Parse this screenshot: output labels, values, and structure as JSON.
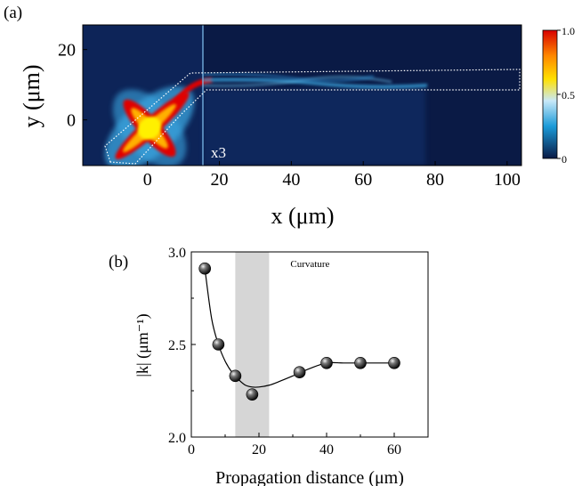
{
  "chart_data": [
    {
      "panel_label": "(a)",
      "type": "heatmap",
      "xlabel": "x (μm)",
      "ylabel": "y (μm)",
      "xlim": [
        -18,
        104
      ],
      "ylim": [
        -13,
        27
      ],
      "xticks": [
        "0",
        "20",
        "40",
        "60",
        "80",
        "100"
      ],
      "yticks": [
        "20",
        "0"
      ],
      "annotation": "x3",
      "annotation_x": 15,
      "colorbar": {
        "min": 0,
        "max": 1.0,
        "ticks": [
          "1.0",
          "0.5",
          "0"
        ],
        "colors": [
          "#0a1a45",
          "#1a9ad8",
          "#c8e8f8",
          "#ffe000",
          "#ff8800",
          "#d80000"
        ]
      },
      "waveguide": {
        "x_start": 15,
        "x_end": 103,
        "y_top": 15,
        "y_bottom": 9
      }
    },
    {
      "panel_label": "(b)",
      "type": "scatter",
      "xlabel": "Propagation distance (μm)",
      "ylabel": "|k| (μm⁻¹)",
      "xlim": [
        0,
        70
      ],
      "ylim": [
        2.0,
        3.0
      ],
      "xticks": [
        "0",
        "20",
        "40",
        "60"
      ],
      "yticks": [
        "2.0",
        "2.5",
        "3.0"
      ],
      "shaded_region_x": [
        13,
        23
      ],
      "shaded_label": "Curvature",
      "x": [
        4,
        8,
        13,
        18,
        32,
        40,
        50,
        60
      ],
      "y": [
        2.91,
        2.5,
        2.33,
        2.23,
        2.35,
        2.4,
        2.4,
        2.4
      ],
      "fit_x": [
        4,
        6,
        8,
        10,
        12,
        14,
        16,
        18,
        20,
        23,
        26,
        30,
        35,
        40,
        45,
        50,
        55,
        60
      ],
      "fit_y": [
        2.91,
        2.64,
        2.5,
        2.41,
        2.35,
        2.31,
        2.28,
        2.27,
        2.27,
        2.28,
        2.3,
        2.33,
        2.37,
        2.4,
        2.4,
        2.4,
        2.4,
        2.4
      ]
    }
  ]
}
